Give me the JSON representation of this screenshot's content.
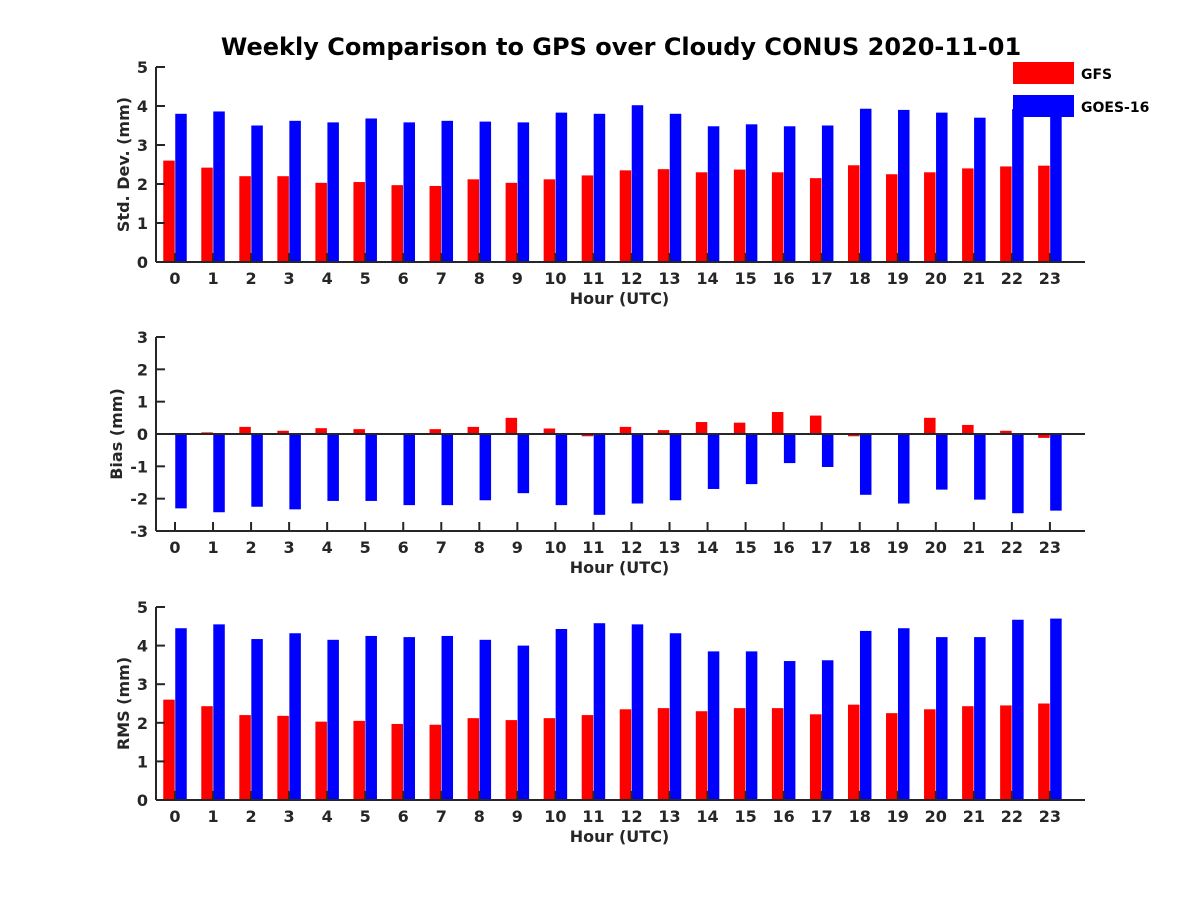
{
  "chart_data": [
    {
      "type": "bar",
      "title": "Weekly Comparison to GPS over Cloudy CONUS 2020-11-01",
      "xlabel": "Hour (UTC)",
      "ylabel": "Std. Dev. (mm)",
      "ylim": [
        0,
        5
      ],
      "yticks": [
        0,
        1,
        2,
        3,
        4,
        5
      ],
      "categories": [
        "0",
        "1",
        "2",
        "3",
        "4",
        "5",
        "6",
        "7",
        "8",
        "9",
        "10",
        "11",
        "12",
        "13",
        "14",
        "15",
        "16",
        "17",
        "18",
        "19",
        "20",
        "21",
        "22",
        "23"
      ],
      "series": [
        {
          "name": "GFS",
          "color": "#ff0000",
          "values": [
            2.6,
            2.42,
            2.2,
            2.2,
            2.03,
            2.05,
            1.97,
            1.95,
            2.12,
            2.03,
            2.12,
            2.22,
            2.35,
            2.38,
            2.3,
            2.37,
            2.3,
            2.15,
            2.48,
            2.25,
            2.3,
            2.4,
            2.45,
            2.47
          ]
        },
        {
          "name": "GOES-16",
          "color": "#0000ff",
          "values": [
            3.8,
            3.86,
            3.5,
            3.62,
            3.58,
            3.68,
            3.58,
            3.62,
            3.6,
            3.58,
            3.83,
            3.8,
            4.02,
            3.8,
            3.48,
            3.53,
            3.48,
            3.5,
            3.93,
            3.9,
            3.83,
            3.7,
            3.92,
            3.9
          ]
        }
      ],
      "legend": "top-right",
      "grid": false
    },
    {
      "type": "bar",
      "xlabel": "Hour (UTC)",
      "ylabel": "Bias (mm)",
      "ylim": [
        -3,
        3
      ],
      "yticks": [
        -3,
        -2,
        -1,
        0,
        1,
        2,
        3
      ],
      "categories": [
        "0",
        "1",
        "2",
        "3",
        "4",
        "5",
        "6",
        "7",
        "8",
        "9",
        "10",
        "11",
        "12",
        "13",
        "14",
        "15",
        "16",
        "17",
        "18",
        "19",
        "20",
        "21",
        "22",
        "23"
      ],
      "series": [
        {
          "name": "GFS",
          "color": "#ff0000",
          "values": [
            -0.02,
            0.05,
            0.22,
            0.1,
            0.18,
            0.15,
            0.03,
            0.15,
            0.22,
            0.5,
            0.17,
            -0.07,
            0.22,
            0.12,
            0.37,
            0.35,
            0.68,
            0.57,
            -0.07,
            0.02,
            0.5,
            0.28,
            0.1,
            -0.12
          ]
        },
        {
          "name": "GOES-16",
          "color": "#0000ff",
          "values": [
            -2.3,
            -2.42,
            -2.25,
            -2.33,
            -2.07,
            -2.07,
            -2.2,
            -2.2,
            -2.05,
            -1.83,
            -2.2,
            -2.5,
            -2.15,
            -2.05,
            -1.7,
            -1.55,
            -0.9,
            -1.02,
            -1.88,
            -2.15,
            -1.72,
            -2.03,
            -2.45,
            -2.37
          ]
        }
      ],
      "grid": false
    },
    {
      "type": "bar",
      "xlabel": "Hour (UTC)",
      "ylabel": "RMS (mm)",
      "ylim": [
        0,
        5
      ],
      "yticks": [
        0,
        1,
        2,
        3,
        4,
        5
      ],
      "categories": [
        "0",
        "1",
        "2",
        "3",
        "4",
        "5",
        "6",
        "7",
        "8",
        "9",
        "10",
        "11",
        "12",
        "13",
        "14",
        "15",
        "16",
        "17",
        "18",
        "19",
        "20",
        "21",
        "22",
        "23"
      ],
      "series": [
        {
          "name": "GFS",
          "color": "#ff0000",
          "values": [
            2.6,
            2.43,
            2.2,
            2.18,
            2.03,
            2.05,
            1.97,
            1.95,
            2.12,
            2.07,
            2.12,
            2.2,
            2.35,
            2.38,
            2.3,
            2.38,
            2.38,
            2.22,
            2.47,
            2.25,
            2.35,
            2.43,
            2.45,
            2.5
          ]
        },
        {
          "name": "GOES-16",
          "color": "#0000ff",
          "values": [
            4.45,
            4.55,
            4.17,
            4.32,
            4.15,
            4.25,
            4.22,
            4.25,
            4.15,
            4.0,
            4.43,
            4.58,
            4.55,
            4.32,
            3.85,
            3.85,
            3.6,
            3.62,
            4.38,
            4.45,
            4.22,
            4.22,
            4.67,
            4.7
          ]
        }
      ],
      "grid": false
    }
  ]
}
